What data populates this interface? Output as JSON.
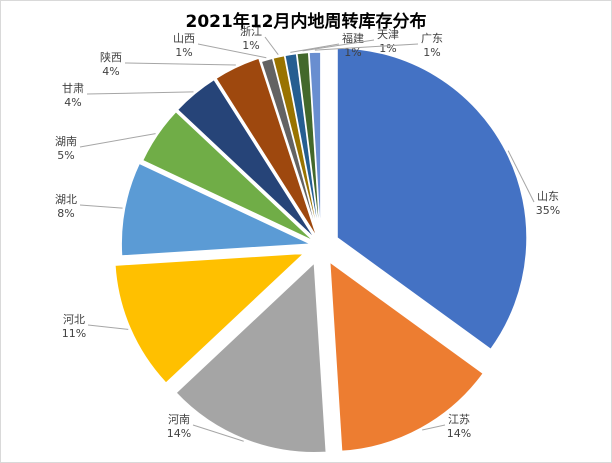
{
  "chart_data": {
    "type": "pie",
    "title": "2021年12月内地周转库存分布",
    "slices": [
      {
        "label": "山东",
        "value": 35,
        "value_text": "35%",
        "color": "#4472C4"
      },
      {
        "label": "江苏",
        "value": 14,
        "value_text": "14%",
        "color": "#ED7D31"
      },
      {
        "label": "河南",
        "value": 14,
        "value_text": "14%",
        "color": "#A5A5A5"
      },
      {
        "label": "河北",
        "value": 11,
        "value_text": "11%",
        "color": "#FFC000"
      },
      {
        "label": "湖北",
        "value": 8,
        "value_text": "8%",
        "color": "#5B9BD5"
      },
      {
        "label": "湖南",
        "value": 5,
        "value_text": "5%",
        "color": "#70AD47"
      },
      {
        "label": "甘肃",
        "value": 4,
        "value_text": "4%",
        "color": "#264478"
      },
      {
        "label": "陕西",
        "value": 4,
        "value_text": "4%",
        "color": "#9E480E"
      },
      {
        "label": "山西",
        "value": 1,
        "value_text": "1%",
        "color": "#636363"
      },
      {
        "label": "浙江",
        "value": 1,
        "value_text": "1%",
        "color": "#997300"
      },
      {
        "label": "福建",
        "value": 1,
        "value_text": "1%",
        "color": "#255E91"
      },
      {
        "label": "天津",
        "value": 1,
        "value_text": "1%",
        "color": "#43682B"
      },
      {
        "label": "广东",
        "value": 1,
        "value_text": "1%",
        "color": "#698ED0"
      }
    ],
    "legend": "none",
    "data_labels": "outside with leader lines"
  }
}
